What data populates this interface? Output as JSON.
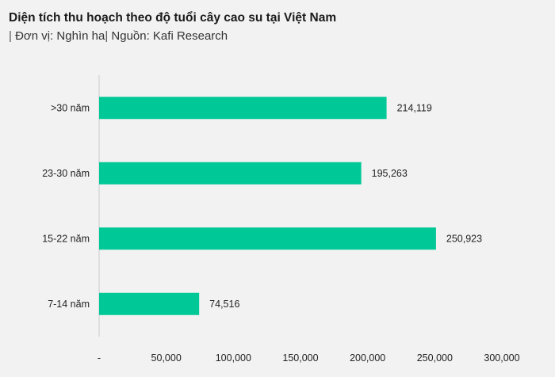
{
  "header": {
    "title": "Diện tích thu hoạch theo độ tuổi cây cao su tại Việt Nam",
    "unit_text": "Đơn vị: Nghìn ha",
    "source_text": "Nguồn: Kafi Research"
  },
  "chart_data": {
    "type": "bar",
    "orientation": "horizontal",
    "categories": [
      ">30 năm",
      "23-30 năm",
      "15-22 năm",
      "7-14 năm"
    ],
    "values": [
      214119,
      195263,
      250923,
      74516
    ],
    "value_labels": [
      "214,119",
      "195,263",
      "250,923",
      "74,516"
    ],
    "xlim": [
      0,
      300000
    ],
    "x_ticks": [
      0,
      50000,
      100000,
      150000,
      200000,
      250000,
      300000
    ],
    "x_tick_labels": [
      "-",
      "50,000",
      "100,000",
      "150,000",
      "200,000",
      "250,000",
      "300,000"
    ],
    "bar_color": "#00c896",
    "grid": false,
    "legend": "none"
  }
}
